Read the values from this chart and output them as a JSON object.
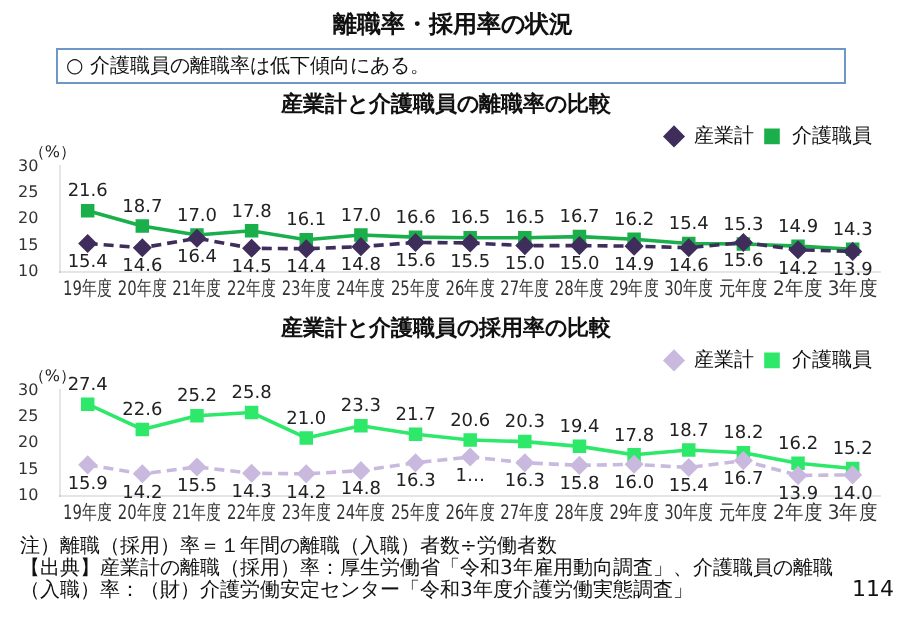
{
  "chart_data": [
    {
      "type": "line",
      "title": "産業計と介護職員の離職率の比較",
      "ylabel": "（%）",
      "annotations": [
        "離職率・採用率の状況",
        "○ 介護職員の離職率は低下傾向にある。"
      ],
      "categories": [
        "19年度",
        "20年度",
        "21年度",
        "22年度",
        "23年度",
        "24年度",
        "25年度",
        "26年度",
        "27年度",
        "28年度",
        "29年度",
        "30年度",
        "元年度",
        "2年度",
        "3年度"
      ],
      "series": [
        {
          "name": "産業計",
          "color": "#3f2d5c",
          "line_style": "dashed",
          "marker": "diamond",
          "values": [
            15.4,
            14.6,
            16.4,
            14.5,
            14.4,
            14.8,
            15.6,
            15.5,
            15.0,
            15.0,
            14.9,
            14.6,
            15.6,
            14.2,
            13.9
          ],
          "value_labels": [
            "15.4",
            "14.6",
            "16.4",
            "14.5",
            "14.4",
            "14.8",
            "15.6",
            "15.5",
            "15.0",
            "15.0",
            "14.9",
            "14.6",
            "15.6",
            "14.2",
            "13.9"
          ]
        },
        {
          "name": "介護職員",
          "color": "#1aaf4b",
          "line_style": "solid",
          "marker": "square",
          "values": [
            21.6,
            18.7,
            17.0,
            17.8,
            16.1,
            17.0,
            16.6,
            16.5,
            16.5,
            16.7,
            16.2,
            15.4,
            15.3,
            14.9,
            14.3
          ],
          "value_labels": [
            "21.6",
            "18.7",
            "17.0",
            "17.8",
            "16.1",
            "17.0",
            "16.6",
            "16.5",
            "16.5",
            "16.7",
            "16.2",
            "15.4",
            "15.3",
            "14.9",
            "14.3"
          ]
        }
      ],
      "ylim": [
        10,
        30
      ],
      "yticks": [
        10,
        15,
        20,
        25,
        30
      ],
      "grid": false,
      "legend": "top"
    },
    {
      "type": "line",
      "title": "産業計と介護職員の採用率の比較",
      "ylabel": "（%）",
      "annotations": [
        "注）離職（採用）率＝１年間の離職（入職）者数÷労働者数",
        "【出典】産業計の離職（採用）率：厚生労働省「令和3年雇用動向調査」、介護職員の離職（入職）率：（財）介護労働安定センター「令和3年度介護労働実態調査」",
        "114"
      ],
      "categories": [
        "19年度",
        "20年度",
        "21年度",
        "22年度",
        "23年度",
        "24年度",
        "25年度",
        "26年度",
        "27年度",
        "28年度",
        "29年度",
        "30年度",
        "元年度",
        "2年度",
        "3年度"
      ],
      "series": [
        {
          "name": "産業計",
          "color": "#c9b9de",
          "line_style": "dashed",
          "marker": "diamond",
          "values": [
            15.9,
            14.2,
            15.5,
            14.3,
            14.2,
            14.8,
            16.3,
            17.4,
            16.3,
            15.8,
            16.0,
            15.4,
            16.7,
            13.9,
            14.0
          ],
          "value_labels": [
            "15.9",
            "14.2",
            "15.5",
            "14.3",
            "14.2",
            "14.8",
            "16.3",
            "1…",
            "16.3",
            "15.8",
            "16.0",
            "15.4",
            "16.7",
            "13.9",
            "14.0"
          ]
        },
        {
          "name": "介護職員",
          "color": "#2ee86a",
          "line_style": "solid",
          "marker": "square",
          "values": [
            27.4,
            22.6,
            25.2,
            25.8,
            21.0,
            23.3,
            21.7,
            20.6,
            20.3,
            19.4,
            17.8,
            18.7,
            18.2,
            16.2,
            15.2
          ],
          "value_labels": [
            "27.4",
            "22.6",
            "25.2",
            "25.8",
            "21.0",
            "23.3",
            "21.7",
            "20.6",
            "20.3",
            "19.4",
            "17.8",
            "18.7",
            "18.2",
            "16.2",
            "15.2"
          ]
        }
      ],
      "ylim": [
        10,
        30
      ],
      "yticks": [
        10,
        15,
        20,
        25,
        30
      ],
      "grid": false,
      "legend": "top"
    }
  ]
}
